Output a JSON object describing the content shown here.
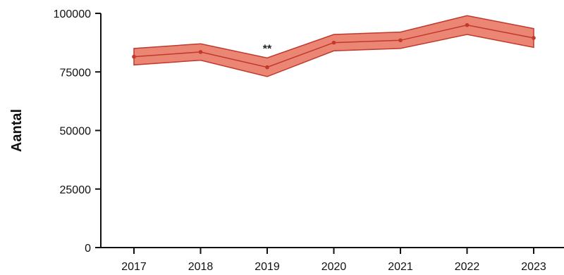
{
  "chart_data": {
    "type": "line",
    "title": "",
    "xlabel": "",
    "ylabel": "Aantal",
    "x": [
      "2017",
      "2018",
      "2019",
      "2020",
      "2021",
      "2022",
      "2023"
    ],
    "series": [
      {
        "values": [
          81500,
          83500,
          77000,
          87500,
          88500,
          95000,
          89500
        ],
        "lower": [
          78000,
          80000,
          73000,
          84000,
          85000,
          91000,
          85500
        ],
        "upper": [
          85000,
          87000,
          81000,
          91000,
          92000,
          99000,
          93500
        ],
        "color": "#c0392b",
        "band_color": "#e8705c"
      }
    ],
    "ylim": [
      0,
      100000
    ],
    "yticks": [
      0,
      25000,
      50000,
      75000,
      100000
    ],
    "grid": false,
    "annotations": [
      {
        "x": "2019",
        "text": "**"
      }
    ]
  }
}
